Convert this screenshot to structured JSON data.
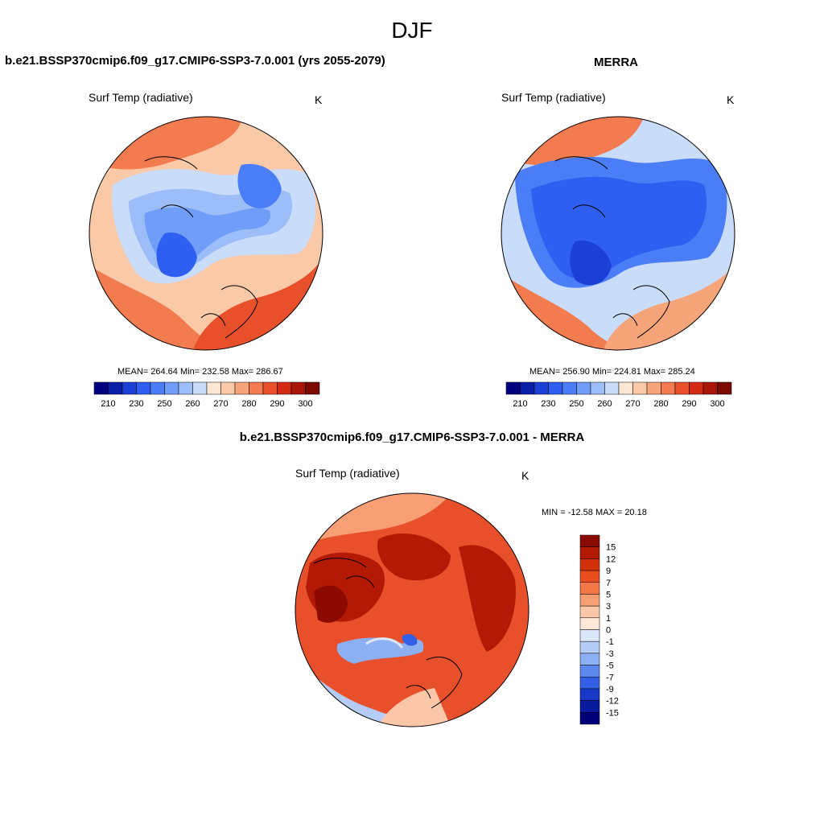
{
  "figure": {
    "season": "DJF",
    "model_title": "b.e21.BSSP370cmip6.f09_g17.CMIP6-SSP3-7.0.001 (yrs 2055-2079)",
    "obs_title": "MERRA",
    "diff_title": "b.e21.BSSP370cmip6.f09_g17.CMIP6-SSP3-7.0.001 - MERRA"
  },
  "panels": {
    "model": {
      "variable": "Surf Temp (radiative)",
      "units": "K",
      "stats": "MEAN= 264.64  Min= 232.58  Max= 286.67"
    },
    "obs": {
      "variable": "Surf Temp (radiative)",
      "units": "K",
      "stats": "MEAN= 256.90  Min= 224.81  Max= 285.24"
    },
    "diff": {
      "variable": "Surf Temp (radiative)",
      "units": "K",
      "stats": "MIN = -12.58 MAX =  20.18"
    }
  },
  "chart_data": [
    {
      "type": "heatmap",
      "title": "Surf Temp (radiative)",
      "projection": "polar stereographic (north pole)",
      "units": "K",
      "mean": 264.64,
      "min": 232.58,
      "max": 286.67,
      "colorbar": {
        "orientation": "horizontal",
        "levels": [
          205,
          210,
          220,
          230,
          240,
          250,
          255,
          260,
          265,
          270,
          275,
          280,
          285,
          290,
          295,
          300
        ],
        "tick_labels": [
          "210",
          "230",
          "250",
          "260",
          "270",
          "280",
          "290",
          "300"
        ],
        "colors": [
          "#00007f",
          "#0a1fa8",
          "#1c3fd6",
          "#2f5ff0",
          "#4b7ef6",
          "#6f9df8",
          "#9dbdf9",
          "#c9dcf9",
          "#fbe5d3",
          "#f9c9a8",
          "#f6a47a",
          "#f27b50",
          "#e8502c",
          "#d22a12",
          "#a61708",
          "#7a0a02"
        ]
      }
    },
    {
      "type": "heatmap",
      "title": "Surf Temp (radiative)",
      "projection": "polar stereographic (north pole)",
      "units": "K",
      "mean": 256.9,
      "min": 224.81,
      "max": 285.24,
      "colorbar": {
        "orientation": "horizontal",
        "levels": [
          205,
          210,
          220,
          230,
          240,
          250,
          255,
          260,
          265,
          270,
          275,
          280,
          285,
          290,
          295,
          300
        ],
        "tick_labels": [
          "210",
          "230",
          "250",
          "260",
          "270",
          "280",
          "290",
          "300"
        ],
        "colors": [
          "#00007f",
          "#0a1fa8",
          "#1c3fd6",
          "#2f5ff0",
          "#4b7ef6",
          "#6f9df8",
          "#9dbdf9",
          "#c9dcf9",
          "#fbe5d3",
          "#f9c9a8",
          "#f6a47a",
          "#f27b50",
          "#e8502c",
          "#d22a12",
          "#a61708",
          "#7a0a02"
        ]
      }
    },
    {
      "type": "heatmap",
      "title": "Surf Temp (radiative)",
      "projection": "polar stereographic (north pole)",
      "units": "K",
      "min": -12.58,
      "max": 20.18,
      "colorbar": {
        "orientation": "vertical",
        "tick_labels": [
          "15",
          "12",
          "9",
          "7",
          "5",
          "3",
          "1",
          "0",
          "-1",
          "-3",
          "-5",
          "-7",
          "-9",
          "-12",
          "-15"
        ],
        "colors": [
          "#8b0a02",
          "#b21a06",
          "#d3300d",
          "#ea4e1f",
          "#f27646",
          "#f79e74",
          "#fbc7a8",
          "#fde7d8",
          "#dce8fa",
          "#b5cdf6",
          "#8db0f2",
          "#5c88ee",
          "#3460e6",
          "#1838c8",
          "#0a1c9e",
          "#000078"
        ]
      }
    }
  ]
}
